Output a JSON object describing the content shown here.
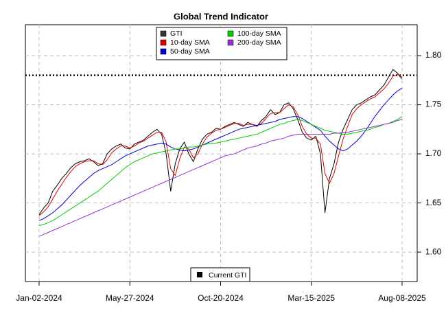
{
  "chart_data": {
    "type": "line",
    "title": "Global Trend Indicator",
    "categories": [
      "Jan-02-2024",
      null,
      null,
      null,
      null,
      null,
      null,
      null,
      null,
      null,
      null,
      null,
      null,
      null,
      null,
      null,
      null,
      null,
      null,
      null,
      "May-27-2024",
      null,
      null,
      null,
      null,
      null,
      null,
      null,
      null,
      null,
      null,
      null,
      null,
      null,
      null,
      null,
      null,
      null,
      null,
      null,
      "Oct-20-2024",
      null,
      null,
      null,
      null,
      null,
      null,
      null,
      null,
      null,
      null,
      null,
      null,
      null,
      null,
      null,
      null,
      null,
      null,
      null,
      "Mar-15-2025",
      null,
      null,
      null,
      null,
      null,
      null,
      null,
      null,
      null,
      null,
      null,
      null,
      null,
      null,
      null,
      null,
      null,
      null,
      null,
      "Aug-08-2025"
    ],
    "ylim": [
      1.57,
      1.8315
    ],
    "yticks": [
      {
        "value": 1.6,
        "label": "1.60"
      },
      1.65,
      {
        "value": 1.7,
        "label": "1.70"
      },
      1.75,
      {
        "value": 1.8,
        "label": "1.80"
      }
    ],
    "grid": true,
    "legend": "top",
    "series": [
      {
        "name": "GTI",
        "color": "#000000",
        "legend_color": "#333333",
        "values": [
          1.638,
          1.645,
          1.65,
          1.662,
          1.668,
          1.675,
          1.68,
          1.686,
          1.69,
          1.692,
          1.693,
          1.695,
          1.692,
          1.688,
          1.69,
          1.7,
          1.705,
          1.708,
          1.71,
          1.706,
          1.705,
          1.71,
          1.712,
          1.714,
          1.718,
          1.722,
          1.725,
          1.72,
          1.7,
          1.662,
          1.69,
          1.705,
          1.712,
          1.7,
          1.692,
          1.705,
          1.715,
          1.72,
          1.722,
          1.726,
          1.725,
          1.728,
          1.73,
          1.732,
          1.73,
          1.728,
          1.732,
          1.73,
          1.728,
          1.734,
          1.738,
          1.745,
          1.74,
          1.742,
          1.75,
          1.752,
          1.746,
          1.735,
          1.722,
          1.716,
          1.714,
          1.718,
          1.7,
          1.64,
          1.675,
          1.69,
          1.712,
          1.725,
          1.735,
          1.745,
          1.75,
          1.752,
          1.755,
          1.758,
          1.76,
          1.765,
          1.77,
          1.778,
          1.786,
          1.782,
          1.776
        ]
      },
      {
        "name": "10-day SMA",
        "color": "#dd0000",
        "values": [
          1.637,
          1.641,
          1.646,
          1.654,
          1.662,
          1.669,
          1.676,
          1.682,
          1.687,
          1.69,
          1.692,
          1.693,
          1.693,
          1.69,
          1.689,
          1.694,
          1.701,
          1.705,
          1.708,
          1.708,
          1.706,
          1.708,
          1.711,
          1.713,
          1.716,
          1.719,
          1.722,
          1.722,
          1.712,
          1.685,
          1.678,
          1.695,
          1.707,
          1.705,
          1.696,
          1.7,
          1.71,
          1.717,
          1.721,
          1.724,
          1.725,
          1.727,
          1.729,
          1.731,
          1.731,
          1.729,
          1.73,
          1.73,
          1.729,
          1.731,
          1.736,
          1.741,
          1.742,
          1.742,
          1.746,
          1.75,
          1.748,
          1.74,
          1.728,
          1.72,
          1.716,
          1.716,
          1.71,
          1.68,
          1.67,
          1.68,
          1.698,
          1.715,
          1.728,
          1.74,
          1.746,
          1.75,
          1.753,
          1.756,
          1.758,
          1.762,
          1.766,
          1.772,
          1.779,
          1.781,
          1.778
        ]
      },
      {
        "name": "50-day SMA",
        "color": "#0000cc",
        "values": [
          1.632,
          1.634,
          1.637,
          1.64,
          1.644,
          1.648,
          1.653,
          1.658,
          1.663,
          1.668,
          1.672,
          1.676,
          1.68,
          1.683,
          1.685,
          1.687,
          1.689,
          1.692,
          1.695,
          1.698,
          1.7,
          1.702,
          1.704,
          1.706,
          1.708,
          1.709,
          1.71,
          1.711,
          1.71,
          1.707,
          1.705,
          1.704,
          1.703,
          1.704,
          1.705,
          1.707,
          1.709,
          1.711,
          1.713,
          1.715,
          1.717,
          1.719,
          1.721,
          1.723,
          1.725,
          1.726,
          1.727,
          1.728,
          1.729,
          1.73,
          1.731,
          1.732,
          1.733,
          1.735,
          1.736,
          1.737,
          1.738,
          1.738,
          1.736,
          1.733,
          1.73,
          1.727,
          1.724,
          1.718,
          1.713,
          1.709,
          1.705,
          1.703,
          1.705,
          1.709,
          1.713,
          1.718,
          1.724,
          1.731,
          1.738,
          1.744,
          1.75,
          1.755,
          1.76,
          1.764,
          1.767
        ]
      },
      {
        "name": "100-day SMA",
        "color": "#00cc00",
        "values": [
          1.627,
          1.628,
          1.63,
          1.632,
          1.635,
          1.638,
          1.641,
          1.644,
          1.647,
          1.65,
          1.653,
          1.656,
          1.659,
          1.662,
          1.666,
          1.67,
          1.674,
          1.678,
          1.682,
          1.686,
          1.689,
          1.692,
          1.694,
          1.696,
          1.698,
          1.7,
          1.701,
          1.702,
          1.703,
          1.704,
          1.705,
          1.705,
          1.706,
          1.707,
          1.707,
          1.708,
          1.709,
          1.71,
          1.711,
          1.711,
          1.712,
          1.713,
          1.714,
          1.715,
          1.716,
          1.717,
          1.718,
          1.719,
          1.72,
          1.722,
          1.724,
          1.726,
          1.728,
          1.73,
          1.731,
          1.733,
          1.734,
          1.735,
          1.734,
          1.732,
          1.73,
          1.728,
          1.726,
          1.724,
          1.723,
          1.722,
          1.721,
          1.72,
          1.72,
          1.721,
          1.722,
          1.723,
          1.724,
          1.725,
          1.727,
          1.728,
          1.73,
          1.731,
          1.733,
          1.735,
          1.738
        ]
      },
      {
        "name": "200-day SMA",
        "color": "#9933cc",
        "values": [
          1.616,
          1.618,
          1.62,
          1.622,
          1.624,
          1.626,
          1.628,
          1.63,
          1.632,
          1.634,
          1.636,
          1.638,
          1.64,
          1.642,
          1.644,
          1.646,
          1.648,
          1.65,
          1.652,
          1.654,
          1.656,
          1.658,
          1.66,
          1.662,
          1.664,
          1.666,
          1.668,
          1.67,
          1.672,
          1.674,
          1.676,
          1.678,
          1.68,
          1.682,
          1.684,
          1.686,
          1.688,
          1.69,
          1.692,
          1.694,
          1.696,
          1.698,
          1.699,
          1.7,
          1.702,
          1.704,
          1.706,
          1.707,
          1.708,
          1.71,
          1.711,
          1.713,
          1.714,
          1.715,
          1.716,
          1.718,
          1.719,
          1.72,
          1.72,
          1.72,
          1.72,
          1.72,
          1.72,
          1.72,
          1.72,
          1.721,
          1.721,
          1.722,
          1.722,
          1.723,
          1.724,
          1.725,
          1.726,
          1.727,
          1.728,
          1.729,
          1.73,
          1.731,
          1.732,
          1.734,
          1.735
        ]
      }
    ],
    "reference_line": {
      "name": "Current GTI",
      "value": 1.78,
      "color": "#000000"
    }
  }
}
